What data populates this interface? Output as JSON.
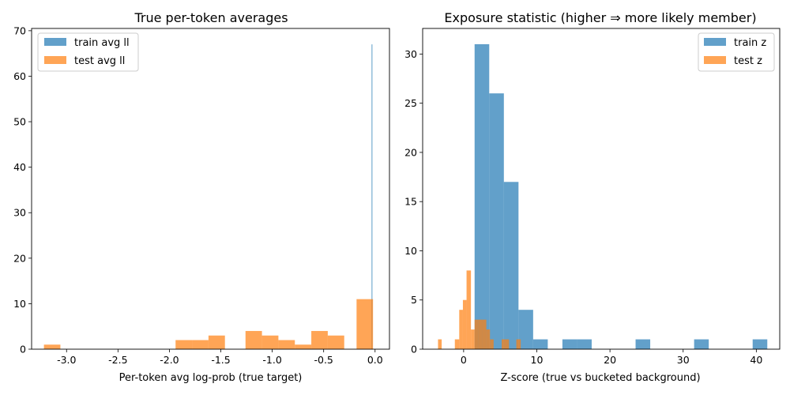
{
  "chart_data": [
    {
      "type": "histogram",
      "title": "True per-token averages",
      "xlabel": "Per-token avg log-prob (true target)",
      "ylabel": "",
      "xlim": [
        -3.34,
        0.14
      ],
      "ylim": [
        0,
        70.5
      ],
      "xticks": [
        "-3.0",
        "-2.5",
        "-2.0",
        "-1.5",
        "-1.0",
        "-0.5",
        "0.0"
      ],
      "xtick_values": [
        -3.0,
        -2.5,
        -2.0,
        -1.5,
        -1.0,
        -0.5,
        0.0
      ],
      "yticks": [
        "0",
        "10",
        "20",
        "30",
        "40",
        "50",
        "60",
        "70"
      ],
      "ytick_values": [
        0,
        10,
        20,
        30,
        40,
        50,
        60,
        70
      ],
      "legend": {
        "placement": "top-left",
        "entries": [
          "train avg ll",
          "test avg ll"
        ]
      },
      "series": [
        {
          "name": "train avg ll",
          "color": "#1f77b4",
          "opacity": 0.7,
          "bins": [
            [
              -0.034,
              -0.026,
              67
            ]
          ]
        },
        {
          "name": "test avg ll",
          "color": "#ff7f0e",
          "opacity": 0.7,
          "bins": [
            [
              -3.22,
              -3.06,
              1
            ],
            [
              -1.94,
              -1.78,
              2
            ],
            [
              -1.78,
              -1.62,
              2
            ],
            [
              -1.62,
              -1.46,
              3
            ],
            [
              -1.26,
              -1.1,
              4
            ],
            [
              -1.1,
              -0.94,
              3
            ],
            [
              -0.94,
              -0.78,
              2
            ],
            [
              -0.78,
              -0.62,
              1
            ],
            [
              -0.62,
              -0.46,
              4
            ],
            [
              -0.46,
              -0.3,
              3
            ],
            [
              -0.18,
              -0.02,
              11
            ]
          ]
        }
      ]
    },
    {
      "type": "histogram",
      "title": "Exposure statistic (higher ⇒ more likely member)",
      "xlabel": "Z-score (true vs bucketed background)",
      "ylabel": "",
      "xlim": [
        -5.6,
        43.2
      ],
      "ylim": [
        0,
        32.6
      ],
      "xticks": [
        "0",
        "10",
        "20",
        "30",
        "40"
      ],
      "xtick_values": [
        0,
        10,
        20,
        30,
        40
      ],
      "yticks": [
        "0",
        "5",
        "10",
        "15",
        "20",
        "25",
        "30"
      ],
      "ytick_values": [
        0,
        5,
        10,
        15,
        20,
        25,
        30
      ],
      "legend": {
        "placement": "top-right",
        "entries": [
          "train z",
          "test z"
        ]
      },
      "series": [
        {
          "name": "train z",
          "color": "#1f77b4",
          "opacity": 0.7,
          "bins": [
            [
              1.5,
              3.5,
              31
            ],
            [
              3.5,
              5.5,
              26
            ],
            [
              5.5,
              7.5,
              17
            ],
            [
              7.5,
              9.5,
              4
            ],
            [
              9.5,
              11.5,
              1
            ],
            [
              13.5,
              15.5,
              1
            ],
            [
              15.5,
              17.5,
              1
            ],
            [
              23.5,
              25.5,
              1
            ],
            [
              31.5,
              33.5,
              1
            ],
            [
              39.5,
              41.5,
              1
            ]
          ]
        },
        {
          "name": "test z",
          "color": "#ff7f0e",
          "opacity": 0.7,
          "bins": [
            [
              -3.5,
              -3.0,
              1
            ],
            [
              -1.2,
              -0.6,
              1
            ],
            [
              -0.6,
              -0.1,
              4
            ],
            [
              -0.1,
              0.4,
              5
            ],
            [
              0.4,
              1.0,
              8
            ],
            [
              1.0,
              1.5,
              2
            ],
            [
              1.5,
              2.0,
              3
            ],
            [
              2.0,
              2.6,
              3
            ],
            [
              2.6,
              3.1,
              3
            ],
            [
              3.1,
              3.6,
              2
            ],
            [
              3.6,
              4.1,
              1
            ],
            [
              5.2,
              6.2,
              1
            ],
            [
              7.2,
              7.8,
              1
            ]
          ]
        }
      ]
    }
  ]
}
